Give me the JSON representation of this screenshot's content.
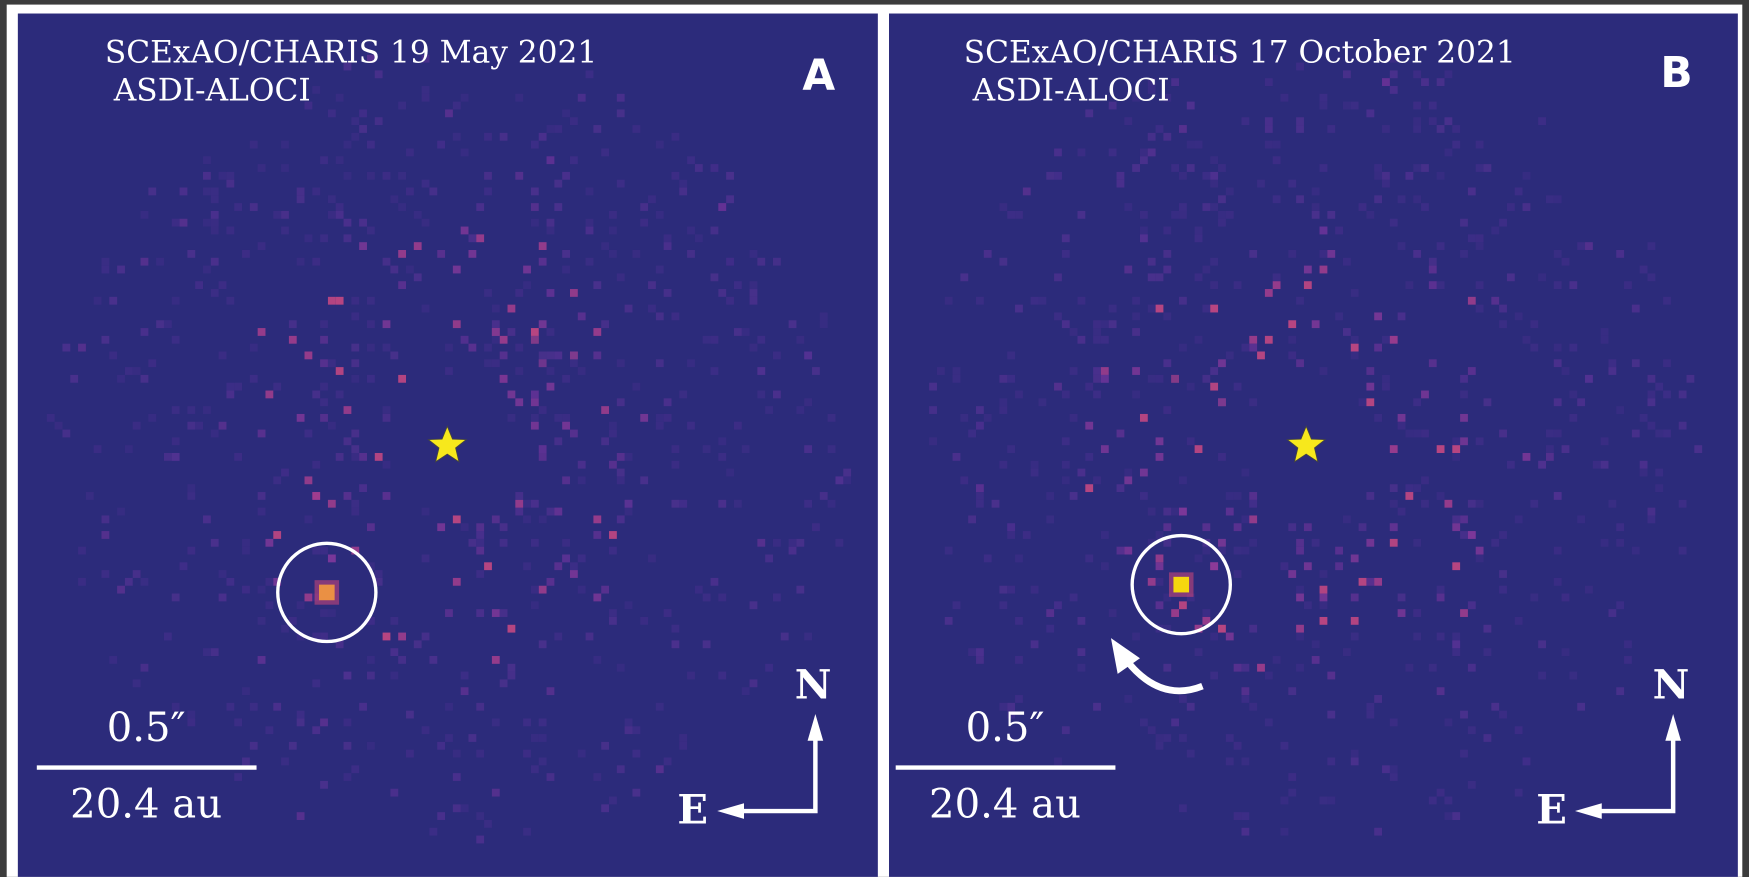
{
  "panels": [
    {
      "title": "SCExAO/CHARIS 19 May 2021",
      "subtitle": "ASDI-ALOCI",
      "label": "A",
      "scale_angle": "0.5″",
      "scale_distance": "20.4 au",
      "north": "N",
      "east": "E"
    },
    {
      "title": "SCExAO/CHARIS 17 October 2021",
      "subtitle": "ASDI-ALOCI",
      "label": "B",
      "scale_angle": "0.5″",
      "scale_distance": "20.4 au",
      "north": "N",
      "east": "E"
    }
  ]
}
